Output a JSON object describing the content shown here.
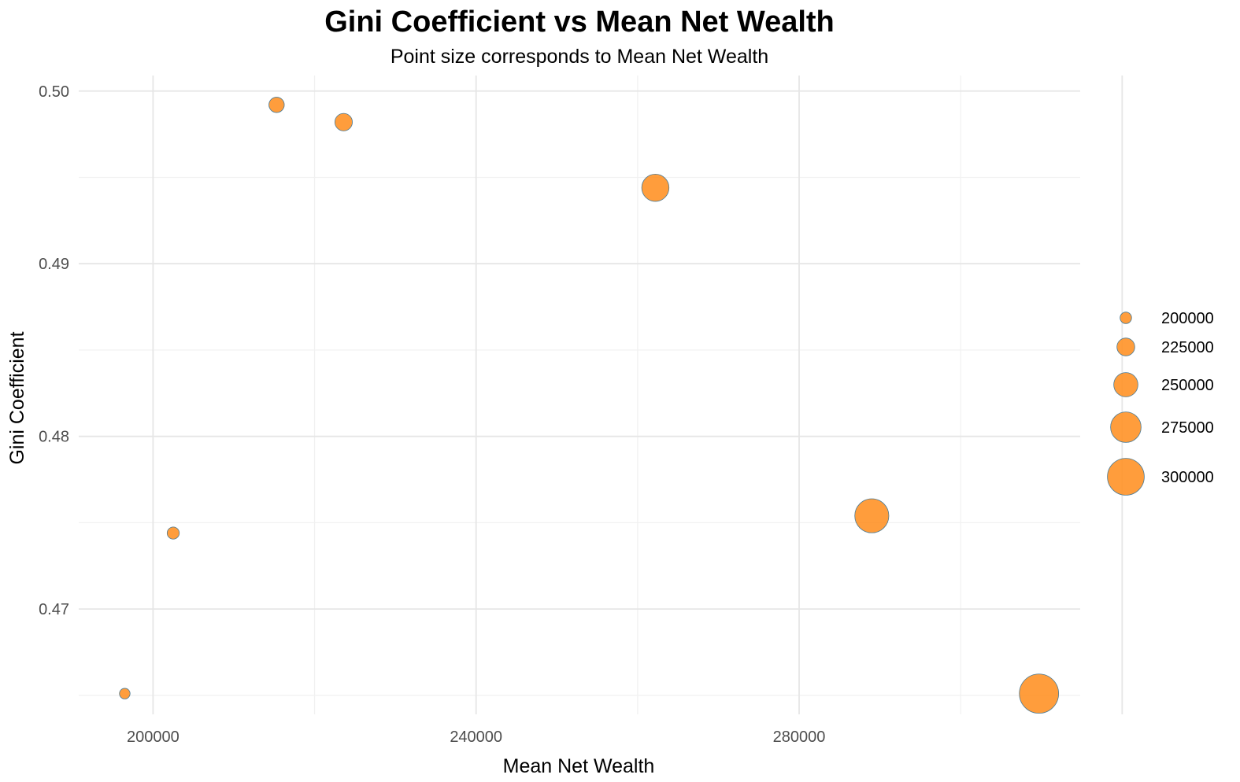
{
  "chart_data": {
    "type": "scatter",
    "title": "Gini Coefficient vs Mean Net Wealth",
    "subtitle": "Point size corresponds to Mean Net Wealth",
    "xlabel": "Mean Net Wealth",
    "ylabel": "Gini Coefficient",
    "xlim": [
      190800,
      314800
    ],
    "ylim": [
      0.4639,
      0.5009
    ],
    "x_ticks": [
      200000,
      240000,
      280000
    ],
    "x_tick_labels": [
      "200000",
      "240000",
      "280000"
    ],
    "y_ticks": [
      0.47,
      0.48,
      0.49,
      0.5
    ],
    "y_tick_labels": [
      "0.47",
      "0.48",
      "0.49",
      "0.50"
    ],
    "grid": true,
    "point_color": "#ff8c1a",
    "point_stroke": "#4a7a95",
    "points": [
      {
        "x": 196500,
        "y": 0.4651
      },
      {
        "x": 202500,
        "y": 0.4744
      },
      {
        "x": 215300,
        "y": 0.4992
      },
      {
        "x": 223600,
        "y": 0.4982
      },
      {
        "x": 262200,
        "y": 0.4944
      },
      {
        "x": 289000,
        "y": 0.4754
      },
      {
        "x": 309700,
        "y": 0.4651
      }
    ],
    "legend": {
      "position": "right",
      "entries": [
        {
          "value": 200000,
          "label": "200000"
        },
        {
          "value": 225000,
          "label": "225000"
        },
        {
          "value": 250000,
          "label": "250000"
        },
        {
          "value": 275000,
          "label": "275000"
        },
        {
          "value": 300000,
          "label": "300000"
        }
      ]
    }
  }
}
